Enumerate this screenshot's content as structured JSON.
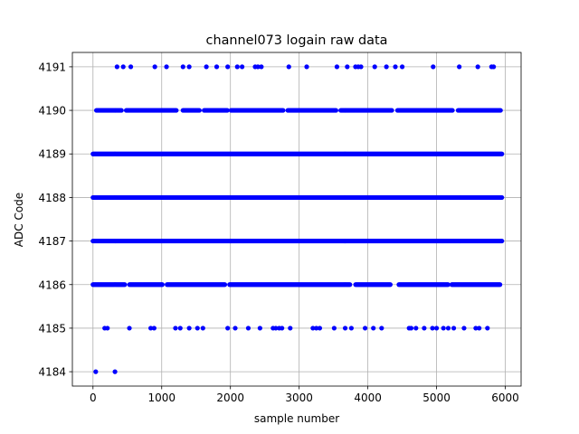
{
  "chart_data": {
    "type": "scatter",
    "title": "channel073 logain raw data",
    "xlabel": "sample number",
    "ylabel": "ADC Code",
    "xlim": [
      -300,
      6230
    ],
    "ylim": [
      4183.67,
      4191.33
    ],
    "xticks": [
      0,
      1000,
      2000,
      3000,
      4000,
      5000,
      6000
    ],
    "yticks": [
      4184,
      4185,
      4186,
      4187,
      4188,
      4189,
      4190,
      4191
    ],
    "grid": true,
    "marker": "circle",
    "color": "#0000ff",
    "series": [
      {
        "levels": [
          {
            "y": 4191,
            "x": [
              350,
              440,
              550,
              900,
              1070,
              1310,
              1400,
              1650,
              1800,
              1960,
              2100,
              2170,
              2360,
              2400,
              2450,
              2850,
              3110,
              3550,
              3700,
              3820,
              3860,
              3900,
              4100,
              4270,
              4400,
              4500,
              4950,
              5330,
              5600,
              5800,
              5830
            ]
          },
          {
            "y": 4185,
            "x": [
              170,
              210,
              530,
              840,
              890,
              1200,
              1270,
              1400,
              1520,
              1600,
              1960,
              2070,
              2260,
              2430,
              2620,
              2660,
              2710,
              2750,
              2870,
              3200,
              3250,
              3300,
              3510,
              3670,
              3760,
              3960,
              4080,
              4200,
              4600,
              4630,
              4700,
              4820,
              4940,
              5000,
              5100,
              5170,
              5250,
              5400,
              5570,
              5620,
              5740
            ]
          },
          {
            "y": 4184,
            "x": [
              40,
              320
            ]
          }
        ],
        "dense_levels": [
          {
            "y": 4190,
            "x_range": [
              50,
              5930
            ],
            "gaps": [
              [
                420,
                480
              ],
              [
                1220,
                1300
              ],
              [
                1550,
                1610
              ],
              [
                1960,
                2000
              ],
              [
                2770,
                2830
              ],
              [
                3550,
                3600
              ],
              [
                4350,
                4420
              ],
              [
                5240,
                5300
              ]
            ]
          },
          {
            "y": 4189,
            "x_range": [
              0,
              5950
            ],
            "gaps": []
          },
          {
            "y": 4188,
            "x_range": [
              0,
              5950
            ],
            "gaps": []
          },
          {
            "y": 4187,
            "x_range": [
              0,
              5950
            ],
            "gaps": []
          },
          {
            "y": 4186,
            "x_range": [
              0,
              5930
            ],
            "gaps": [
              [
                470,
                520
              ],
              [
                1020,
                1070
              ],
              [
                1920,
                1980
              ],
              [
                3750,
                3820
              ],
              [
                4330,
                4440
              ],
              [
                5170,
                5220
              ]
            ]
          }
        ]
      }
    ]
  }
}
